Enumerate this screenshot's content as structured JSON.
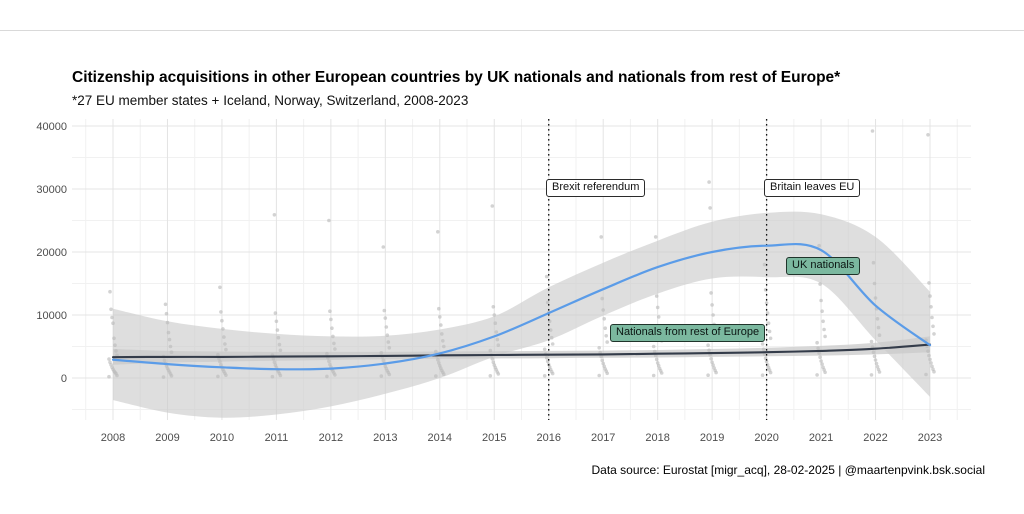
{
  "header": {
    "title": "Citizenship acquisitions in other European countries by UK nationals and nationals from rest of Europe*",
    "subtitle": "*27 EU member states + Iceland, Norway, Switzerland, 2008-2023"
  },
  "caption": {
    "text": "Data source: Eurostat [migr_acq], 28-02-2025 | @maartenpvink.bsk.social"
  },
  "annotations": {
    "brexit_referendum": {
      "label": "Brexit referendum",
      "year": 2016
    },
    "britain_leaves_eu": {
      "label": "Britain leaves EU",
      "year": 2020
    },
    "uk_series_label": {
      "label": "UK nationals"
    },
    "eu_series_label": {
      "label": "Nationals from rest of Europe"
    },
    "series_label_fill": "#7bb89f"
  },
  "chart_data": {
    "type": "line",
    "title": "Citizenship acquisitions in other European countries by UK nationals and nationals from rest of Europe*",
    "subtitle": "*27 EU member states + Iceland, Norway, Switzerland, 2008-2023",
    "xlabel": "",
    "ylabel": "",
    "x": [
      2008,
      2009,
      2010,
      2011,
      2012,
      2013,
      2014,
      2015,
      2016,
      2017,
      2018,
      2019,
      2020,
      2021,
      2022,
      2023
    ],
    "yticks": [
      0,
      10000,
      20000,
      30000,
      40000
    ],
    "ylim": [
      -6700,
      41100
    ],
    "grid": true,
    "legend_position": "inline-labels",
    "colors": {
      "uk_line": "#5b9ce8",
      "eu_line": "#343c4a",
      "ribbon": "#c9c9c9",
      "points": "#bcbcbc",
      "grid_major": "#e4e4e4",
      "grid_minor": "#f1f1f1",
      "axis_text": "#4d4d4d",
      "vline": "#111111"
    },
    "series": [
      {
        "name": "UK nationals",
        "smoothed_values": [
          2900,
          2200,
          1700,
          1400,
          1500,
          2300,
          3900,
          6600,
          10300,
          14100,
          17600,
          20000,
          21000,
          20300,
          11500,
          5200
        ],
        "ci_upper": [
          11000,
          9000,
          7800,
          7000,
          6600,
          6700,
          7700,
          9800,
          14400,
          18300,
          21800,
          24800,
          26200,
          26000,
          22400,
          13700
        ],
        "ci_lower": [
          -3500,
          -5500,
          -6300,
          -5800,
          -4500,
          -2500,
          0,
          3400,
          6000,
          9900,
          13400,
          15800,
          16000,
          15000,
          6000,
          -3000
        ]
      },
      {
        "name": "Nationals from rest of Europe",
        "smoothed_values": [
          3300,
          3350,
          3350,
          3400,
          3450,
          3500,
          3600,
          3650,
          3700,
          3750,
          3850,
          3950,
          4100,
          4300,
          4650,
          5300
        ],
        "ci_upper": [
          4600,
          4300,
          4200,
          4150,
          4150,
          4150,
          4200,
          4250,
          4300,
          4350,
          4450,
          4600,
          4800,
          5100,
          5600,
          6600
        ],
        "ci_lower": [
          2100,
          2450,
          2600,
          2750,
          2850,
          2950,
          3050,
          3100,
          3150,
          3200,
          3250,
          3350,
          3450,
          3550,
          3750,
          4100
        ]
      }
    ],
    "vlines": [
      {
        "year": 2016,
        "label": "Brexit referendum"
      },
      {
        "year": 2020,
        "label": "Britain leaves EU"
      }
    ],
    "scatter_points_by_year": {
      "2008": [
        200,
        400,
        700,
        900,
        1100,
        1400,
        1700,
        2100,
        2500,
        3000,
        3600,
        4300,
        5200,
        6300,
        8700,
        9600,
        10900,
        13700
      ],
      "2009": [
        150,
        350,
        650,
        950,
        1250,
        1550,
        1900,
        2300,
        2800,
        3400,
        4100,
        5000,
        6100,
        7200,
        8800,
        10200,
        11700
      ],
      "2010": [
        250,
        450,
        750,
        1050,
        1350,
        1700,
        2100,
        2600,
        3100,
        3700,
        4500,
        5400,
        6500,
        7800,
        9100,
        10500,
        14400
      ],
      "2011": [
        200,
        400,
        700,
        1000,
        1300,
        1650,
        2050,
        2500,
        3050,
        3650,
        4400,
        5300,
        6400,
        7600,
        9000,
        10300,
        25900
      ],
      "2012": [
        250,
        500,
        800,
        1100,
        1400,
        1750,
        2150,
        2650,
        3200,
        3850,
        4600,
        5500,
        6600,
        7900,
        9300,
        10600,
        25000
      ],
      "2013": [
        300,
        550,
        850,
        1150,
        1500,
        1850,
        2300,
        2800,
        3350,
        4000,
        4800,
        5700,
        6800,
        8100,
        9500,
        10700,
        20800
      ],
      "2014": [
        300,
        600,
        900,
        1200,
        1550,
        1950,
        2400,
        2900,
        3500,
        4200,
        5000,
        5900,
        7000,
        8400,
        9700,
        11000,
        23200
      ],
      "2015": [
        350,
        650,
        950,
        1300,
        1650,
        2050,
        2500,
        3050,
        3650,
        4350,
        5200,
        6100,
        7300,
        8700,
        10000,
        11300,
        27300
      ],
      "2016": [
        350,
        700,
        1000,
        1350,
        1750,
        2150,
        2650,
        3200,
        3800,
        4550,
        5400,
        6400,
        7600,
        9000,
        10400,
        12000,
        16100
      ],
      "2017": [
        400,
        750,
        1100,
        1450,
        1850,
        2300,
        2800,
        3400,
        4050,
        4800,
        5700,
        6700,
        7900,
        9400,
        10800,
        12600,
        22400
      ],
      "2018": [
        400,
        800,
        1150,
        1500,
        1950,
        2400,
        2950,
        3550,
        4200,
        5000,
        5900,
        7000,
        8200,
        9700,
        11200,
        13000,
        22400
      ],
      "2019": [
        450,
        850,
        1200,
        1600,
        2050,
        2500,
        3050,
        3700,
        4400,
        5200,
        6100,
        7200,
        8500,
        10000,
        11600,
        13500,
        27000,
        31100
      ],
      "2020": [
        450,
        850,
        1250,
        1650,
        2100,
        2600,
        3150,
        3800,
        4550,
        5400,
        6300,
        7400,
        8700,
        10300,
        11900,
        14000,
        18000
      ],
      "2021": [
        500,
        900,
        1300,
        1700,
        2200,
        2700,
        3300,
        3950,
        4700,
        5600,
        6600,
        7700,
        9000,
        10600,
        12300,
        14900,
        21000
      ],
      "2022": [
        500,
        950,
        1350,
        1800,
        2300,
        2850,
        3450,
        4100,
        4900,
        5800,
        6800,
        8000,
        9400,
        11000,
        12700,
        15000,
        18300,
        39200
      ],
      "2023": [
        550,
        1000,
        1400,
        1850,
        2400,
        2950,
        3550,
        4250,
        5050,
        6000,
        7000,
        8200,
        9600,
        11300,
        13000,
        15100,
        38600
      ]
    }
  }
}
